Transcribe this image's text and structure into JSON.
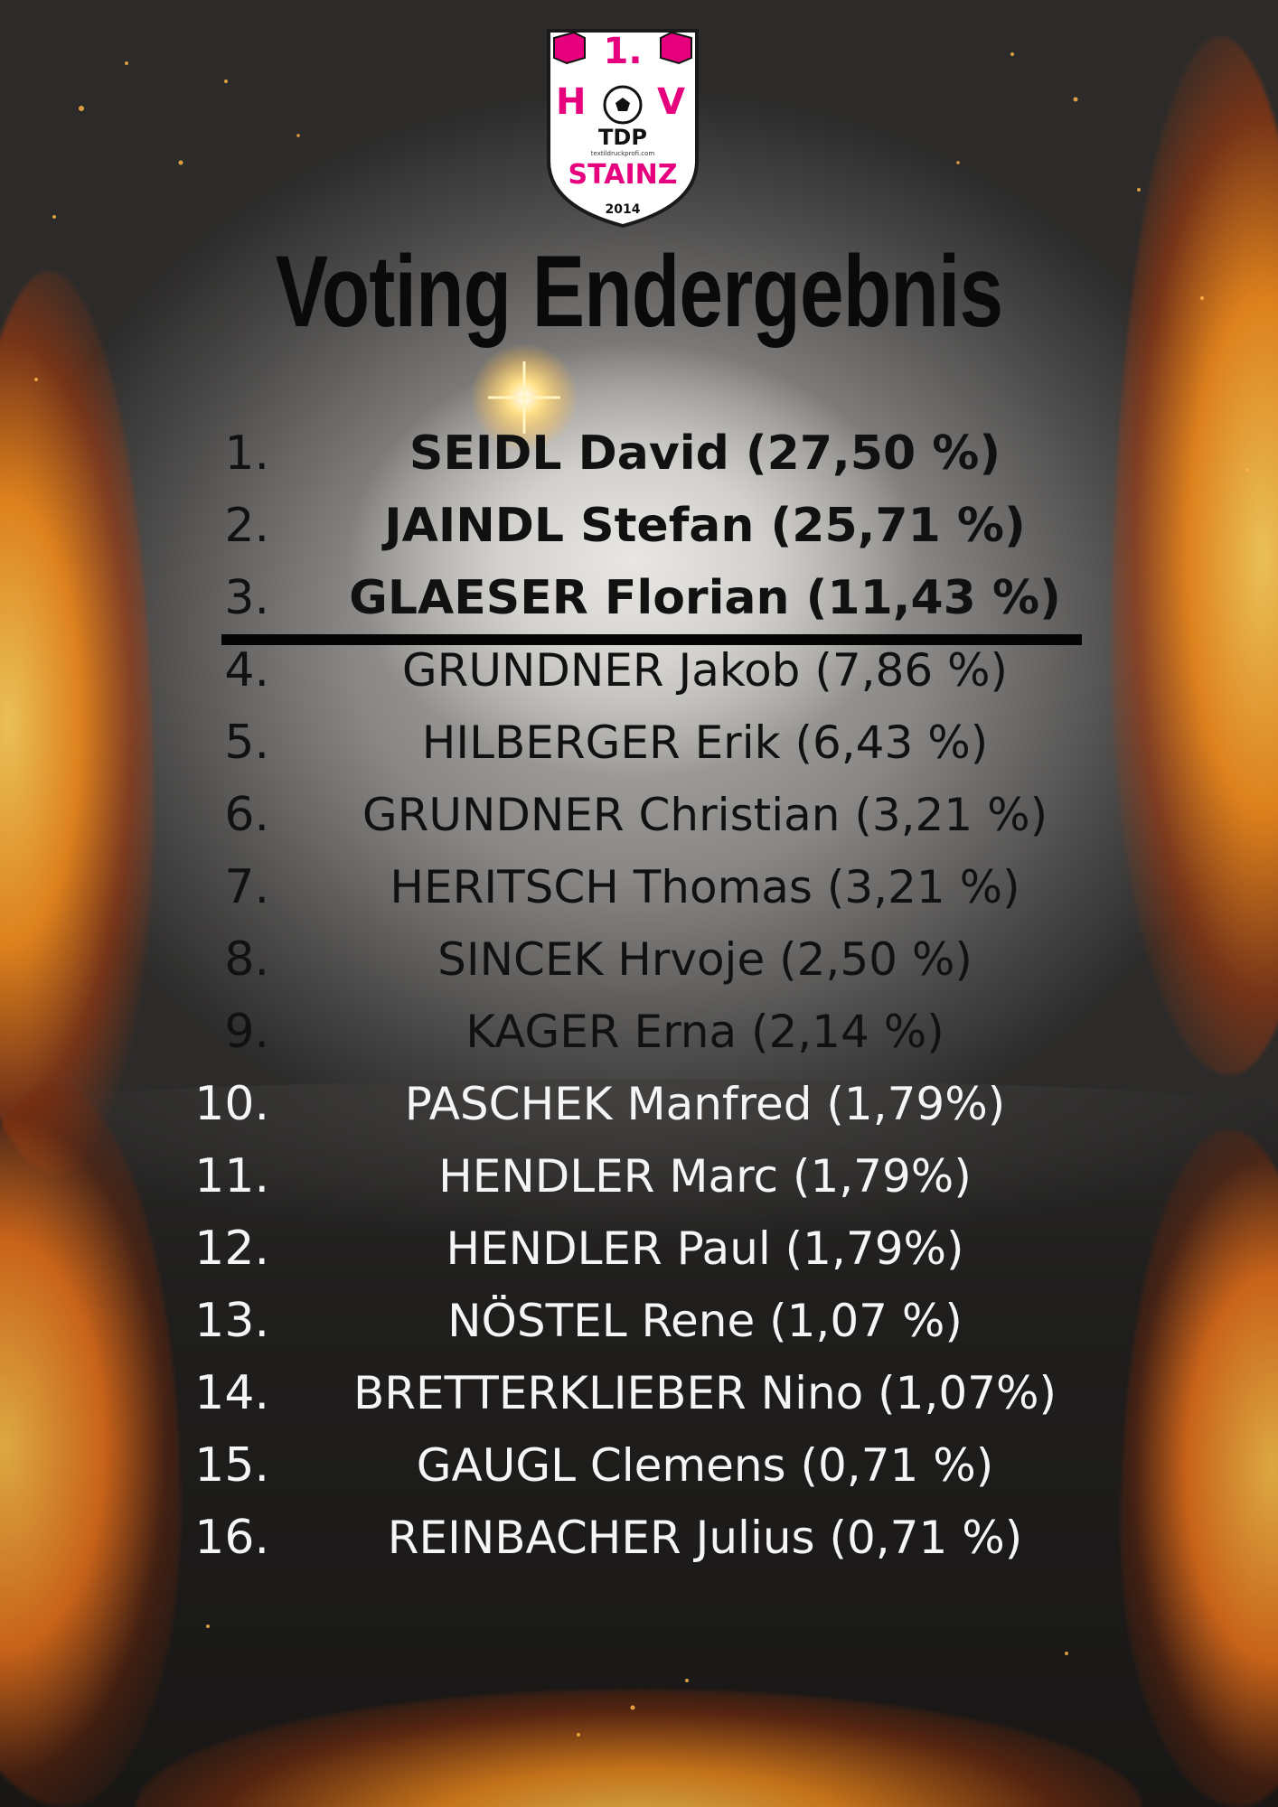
{
  "logo": {
    "line1": "1.",
    "letters_left": "H",
    "letters_right": "V",
    "line2": "TDP",
    "small": "textildruckprofi.com",
    "line3": "STAINZ",
    "year": "2014",
    "colors": {
      "brand_pink": "#e6007e",
      "shield_border": "#1a1a1a"
    }
  },
  "title": "Voting Endergebnis",
  "ranking": [
    {
      "rank": "1.",
      "entry": "SEIDL David (27,50 %)",
      "name": "SEIDL David",
      "percent": 27.5
    },
    {
      "rank": "2.",
      "entry": "JAINDL Stefan (25,71 %)",
      "name": "JAINDL Stefan",
      "percent": 25.71
    },
    {
      "rank": "3.",
      "entry": "GLAESER Florian (11,43 %)",
      "name": "GLAESER Florian",
      "percent": 11.43
    },
    {
      "rank": "4.",
      "entry": "GRUNDNER Jakob (7,86 %)",
      "name": "GRUNDNER Jakob",
      "percent": 7.86
    },
    {
      "rank": "5.",
      "entry": "HILBERGER Erik (6,43 %)",
      "name": "HILBERGER Erik",
      "percent": 6.43
    },
    {
      "rank": "6.",
      "entry": "GRUNDNER Christian (3,21 %)",
      "name": "GRUNDNER Christian",
      "percent": 3.21
    },
    {
      "rank": "7.",
      "entry": "HERITSCH Thomas (3,21 %)",
      "name": "HERITSCH Thomas",
      "percent": 3.21
    },
    {
      "rank": "8.",
      "entry": "SINCEK Hrvoje (2,50 %)",
      "name": "SINCEK Hrvoje",
      "percent": 2.5
    },
    {
      "rank": "9.",
      "entry": "KAGER Erna (2,14 %)",
      "name": "KAGER Erna",
      "percent": 2.14
    },
    {
      "rank": "10.",
      "entry": "PASCHEK Manfred (1,79%)",
      "name": "PASCHEK Manfred",
      "percent": 1.79
    },
    {
      "rank": "11.",
      "entry": "HENDLER Marc (1,79%)",
      "name": "HENDLER Marc",
      "percent": 1.79
    },
    {
      "rank": "12.",
      "entry": "HENDLER Paul (1,79%)",
      "name": "HENDLER Paul",
      "percent": 1.79
    },
    {
      "rank": "13.",
      "entry": "NÖSTEL Rene (1,07 %)",
      "name": "NÖSTEL Rene",
      "percent": 1.07
    },
    {
      "rank": "14.",
      "entry": "BRETTERKLIEBER Nino (1,07%)",
      "name": "BRETTERKLIEBER Nino",
      "percent": 1.07
    },
    {
      "rank": "15.",
      "entry": "GAUGL Clemens (0,71 %)",
      "name": "GAUGL Clemens",
      "percent": 0.71
    },
    {
      "rank": "16.",
      "entry": "REINBACHER Julius (0,71 %)",
      "name": "REINBACHER Julius",
      "percent": 0.71
    }
  ],
  "colors": {
    "fire_orange": "#f08a1c",
    "fire_yellow": "#ffd15c",
    "text_dark": "#111111",
    "text_light": "#f5f5f5"
  }
}
